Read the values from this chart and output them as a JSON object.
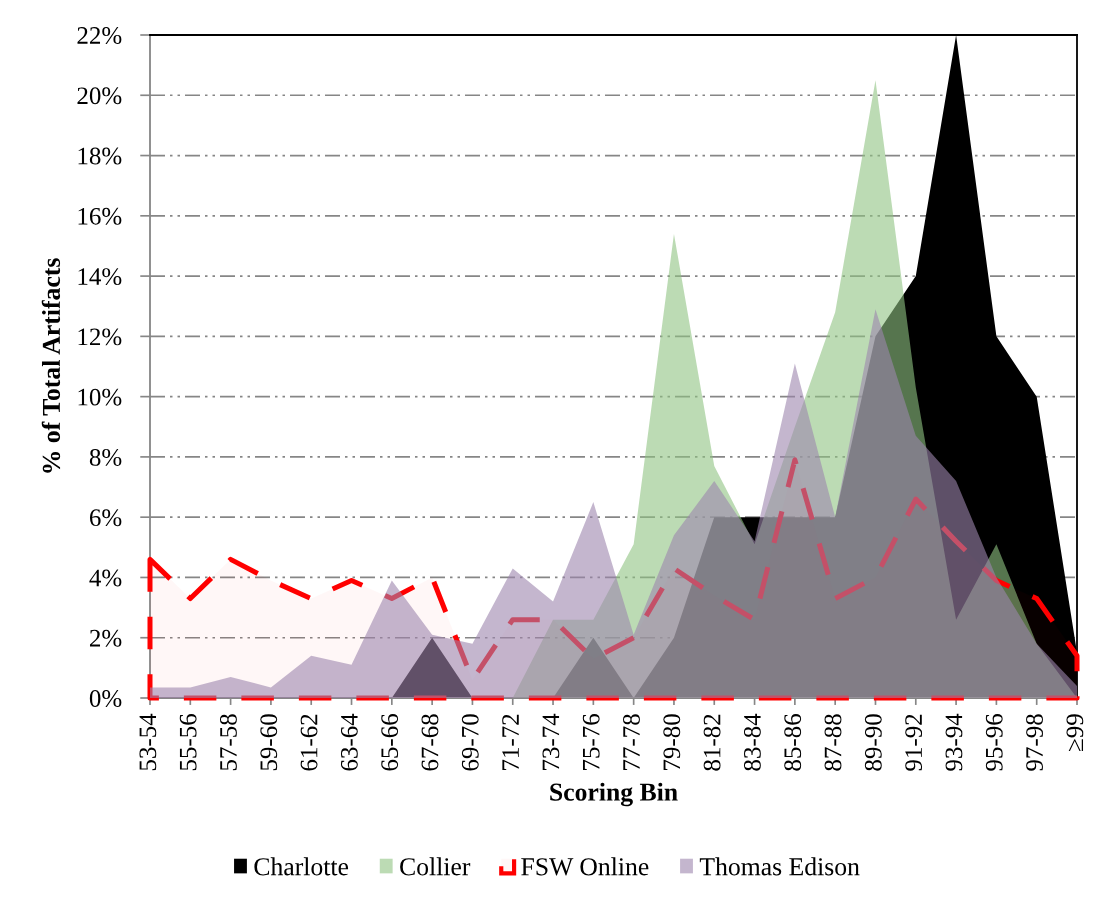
{
  "chart_data": {
    "type": "area",
    "xlabel": "Scoring Bin",
    "ylabel": "% of Total Artifacts",
    "categories": [
      "53-54",
      "55-56",
      "57-58",
      "59-60",
      "61-62",
      "63-64",
      "65-66",
      "67-68",
      "69-70",
      "71-72",
      "73-74",
      "75-76",
      "77-78",
      "79-80",
      "81-82",
      "83-84",
      "85-86",
      "87-88",
      "89-90",
      "91-92",
      "93-94",
      "95-96",
      "97-98",
      "≥99"
    ],
    "series": [
      {
        "name": "Charlotte",
        "color": "#000000",
        "values": [
          0,
          0,
          0,
          0,
          0,
          0,
          0,
          2,
          0,
          0,
          0,
          2,
          0,
          2,
          6,
          6,
          6,
          6,
          12,
          14,
          22,
          12,
          10,
          1.5
        ]
      },
      {
        "name": "Collier",
        "color": "#bcdbb4",
        "values": [
          0,
          0,
          0,
          0,
          0,
          0,
          0,
          0,
          0,
          0,
          2.6,
          2.6,
          5.1,
          15.4,
          7.7,
          5.1,
          9.0,
          12.8,
          20.5,
          10.3,
          2.6,
          5.1,
          1.8,
          0
        ]
      },
      {
        "name": "FSW Online",
        "color": "#ff0000",
        "line_style": "dashed",
        "values": [
          4.6,
          3.3,
          4.6,
          3.9,
          3.3,
          3.9,
          3.3,
          4.0,
          0.6,
          2.6,
          2.6,
          1.3,
          2.0,
          4.3,
          3.4,
          2.6,
          7.9,
          3.3,
          4.0,
          6.6,
          5.2,
          3.9,
          3.3,
          1.4
        ]
      },
      {
        "name": "Thomas Edison",
        "color": "#c4b6ce",
        "values": [
          0.35,
          0.35,
          0.7,
          0.35,
          1.4,
          1.1,
          3.9,
          2.1,
          1.8,
          4.3,
          3.2,
          6.5,
          2.1,
          5.4,
          7.2,
          5.2,
          11.1,
          6.0,
          12.9,
          8.7,
          7.2,
          4.0,
          1.8,
          0.4
        ]
      }
    ],
    "ylim": [
      0,
      22
    ],
    "yticks": [
      {
        "value": 0,
        "label": "0%"
      },
      {
        "value": 2,
        "label": "2%"
      },
      {
        "value": 4,
        "label": "4%"
      },
      {
        "value": 6,
        "label": "6%"
      },
      {
        "value": 8,
        "label": "8%"
      },
      {
        "value": 10,
        "label": "10%"
      },
      {
        "value": 12,
        "label": "12%"
      },
      {
        "value": 14,
        "label": "14%"
      },
      {
        "value": 16,
        "label": "16%"
      },
      {
        "value": 18,
        "label": "18%"
      },
      {
        "value": 20,
        "label": "20%"
      },
      {
        "value": 22,
        "label": "22%"
      }
    ],
    "grid": "y",
    "legend": "bottom"
  }
}
